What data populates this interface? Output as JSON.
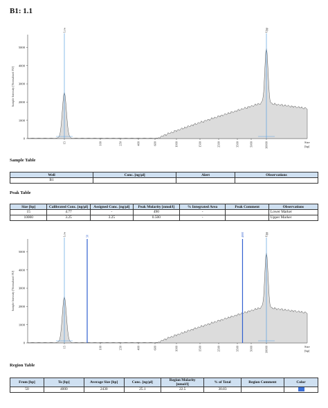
{
  "page_title": "B1: 1.1",
  "colors": {
    "trace_fill": "#dcdcdc",
    "trace_line": "#555555",
    "marker_line": "#5aa0e0",
    "region_line": "#2f5fd0",
    "header_bg": "#cfe0f1"
  },
  "chart_data": [
    {
      "type": "area",
      "ylabel": "Sample Intensity [Normalized FU]",
      "xlabel": "Size [bp]",
      "y_ticks": [
        "0",
        "1000",
        "2000",
        "3000",
        "4000",
        "5000"
      ],
      "ylim": [
        0,
        5700
      ],
      "x_ticks": [
        "15",
        "100",
        "250",
        "400",
        "600",
        "1000",
        "1500",
        "2500",
        "3500",
        "5000",
        "10000"
      ],
      "grid": false,
      "peaks": [
        {
          "label": "Lower",
          "size_bp": 15,
          "intensity": 2500
        },
        {
          "label": "Upper",
          "size_bp": 10000,
          "intensity": 4950
        }
      ],
      "smear": {
        "start_bp": 600,
        "end_bp": 48500,
        "max_intensity": 1950
      }
    },
    {
      "type": "area",
      "ylabel": "Sample Intensity [Normalized FU]",
      "xlabel": "Size [bp]",
      "y_ticks": [
        "0",
        "1000",
        "2000",
        "3000",
        "4000",
        "5000"
      ],
      "ylim": [
        0,
        5700
      ],
      "x_ticks": [
        "15",
        "100",
        "250",
        "400",
        "600",
        "1000",
        "1500",
        "2500",
        "3500",
        "5000",
        "10000"
      ],
      "grid": false,
      "peaks": [
        {
          "label": "Lower",
          "size_bp": 15,
          "intensity": 2500
        },
        {
          "label": "Upper",
          "size_bp": 10000,
          "intensity": 4950
        }
      ],
      "region": {
        "from_label": "50",
        "to_label": "4000",
        "from_bp": 50,
        "to_bp": 4000
      }
    }
  ],
  "sample_table": {
    "heading": "Sample Table",
    "columns": [
      "Well",
      "Conc. [ng/µl]",
      "Alert",
      "Observations"
    ],
    "rows": [
      [
        "B1",
        "",
        "",
        ""
      ]
    ]
  },
  "peak_table": {
    "heading": "Peak Table",
    "columns": [
      "Size [bp]",
      "Calibrated Conc. [ng/µl]",
      "Assigned Conc. [ng/µl]",
      "Peak Molarity [nmol/l]",
      "% Integrated Area",
      "Peak Comment",
      "Observations"
    ],
    "rows": [
      [
        "15",
        "4.77",
        "-",
        "490",
        "-",
        "",
        "Lower Marker"
      ],
      [
        "10000",
        "3.25",
        "3.25",
        "0.500",
        "-",
        "",
        "Upper Marker"
      ]
    ]
  },
  "region_table": {
    "heading": "Region Table",
    "columns": [
      "From [bp]",
      "To [bp]",
      "Average Size [bp]",
      "Conc. [ng/µl]",
      "Region Molarity [nmol/l]",
      "% of Total",
      "Region Comment",
      "Color"
    ],
    "rows": [
      [
        "50",
        "4000",
        "2430",
        "25.1",
        "22.5",
        "30.83",
        "",
        "blue"
      ]
    ]
  }
}
